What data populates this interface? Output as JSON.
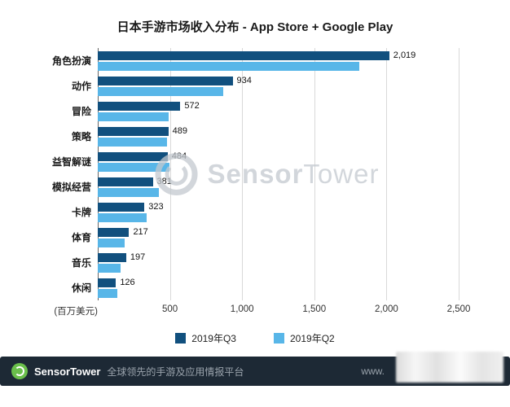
{
  "chart_data": {
    "type": "bar",
    "orientation": "horizontal",
    "title": "日本手游市场收入分布 - App Store + Google Play",
    "xlabel": "(百万美元)",
    "xlim": [
      0,
      2500
    ],
    "xticks": [
      500,
      1000,
      1500,
      2000,
      2500
    ],
    "xtick_labels": [
      "500",
      "1,000",
      "1,500",
      "2,000",
      "2,500"
    ],
    "categories": [
      "角色扮演",
      "动作",
      "冒险",
      "策略",
      "益智解谜",
      "模拟经营",
      "卡牌",
      "体育",
      "音乐",
      "休闲"
    ],
    "series": [
      {
        "name": "2019年Q3",
        "color": "#11507e",
        "values": [
          2019,
          934,
          572,
          489,
          484,
          381,
          323,
          217,
          197,
          126
        ],
        "labels": [
          "2,019",
          "934",
          "572",
          "489",
          "484",
          "381",
          "323",
          "217",
          "197",
          "126"
        ]
      },
      {
        "name": "2019年Q2",
        "color": "#58b6e8",
        "values": [
          1810,
          870,
          490,
          480,
          495,
          425,
          340,
          185,
          160,
          135
        ]
      }
    ],
    "legend_position": "bottom",
    "grid": true
  },
  "watermark": {
    "text_bold": "Sensor",
    "text_light": "Tower"
  },
  "footer": {
    "brand": "SensorTower",
    "tagline": "全球领先的手游及应用情报平台",
    "url_prefix": "www."
  }
}
